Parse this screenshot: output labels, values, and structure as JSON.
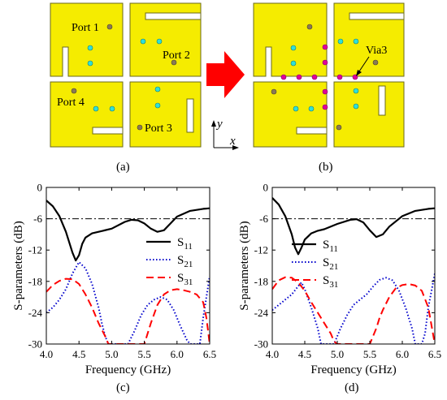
{
  "labels": {
    "port1": "Port 1",
    "port2": "Port 2",
    "port3": "Port 3",
    "port4": "Port 4",
    "via3": "Via3",
    "axis_y": "y",
    "axis_x": "x",
    "panel_a": "(a)",
    "panel_b": "(b)",
    "panel_c": "(c)",
    "panel_d": "(d)"
  },
  "colors": {
    "patch": "#f5ec00",
    "via": "#2fe0d8",
    "via3": "#e0009a",
    "arrow": "#ff0000",
    "s11": "#000000",
    "s21": "#0000cc",
    "s31": "#ff0000"
  },
  "chart_data": [
    {
      "type": "line",
      "panel": "(c)",
      "xlabel": "Frequency (GHz)",
      "ylabel": "S-parameters (dB)",
      "xlim": [
        4.0,
        6.5
      ],
      "ylim": [
        -30,
        0
      ],
      "xticks": [
        4.0,
        4.5,
        5.0,
        5.5,
        6.0,
        6.5
      ],
      "yticks": [
        0,
        -6,
        -12,
        -18,
        -24,
        -30
      ],
      "reference_line": -6,
      "legend_position": "right",
      "series": [
        {
          "name": "S11",
          "sub": "11",
          "style": "solid",
          "x": [
            4.0,
            4.1,
            4.2,
            4.3,
            4.4,
            4.45,
            4.5,
            4.55,
            4.6,
            4.7,
            4.8,
            5.0,
            5.2,
            5.3,
            5.4,
            5.5,
            5.6,
            5.7,
            5.8,
            5.9,
            6.0,
            6.2,
            6.4,
            6.5
          ],
          "y": [
            -2.5,
            -3.6,
            -5.5,
            -8.5,
            -12.5,
            -14.0,
            -13.0,
            -10.8,
            -9.6,
            -8.8,
            -8.5,
            -7.9,
            -6.6,
            -6.2,
            -6.3,
            -6.9,
            -7.9,
            -8.5,
            -8.2,
            -6.9,
            -5.6,
            -4.5,
            -4.1,
            -4.0
          ]
        },
        {
          "name": "S21",
          "sub": "21",
          "style": "dotted",
          "x": [
            4.0,
            4.1,
            4.2,
            4.3,
            4.4,
            4.5,
            4.6,
            4.7,
            4.8,
            4.85,
            4.9,
            4.95,
            5.25,
            5.35,
            5.45,
            5.55,
            5.65,
            5.75,
            5.85,
            5.95,
            6.05,
            6.15,
            6.2,
            6.35,
            6.4,
            6.5
          ],
          "y": [
            -24.0,
            -23.0,
            -21.5,
            -19.5,
            -16.5,
            -14.3,
            -15.5,
            -18.5,
            -23.0,
            -26.0,
            -28.5,
            -30.0,
            -30.0,
            -27.5,
            -24.5,
            -22.5,
            -21.5,
            -21.0,
            -21.5,
            -23.5,
            -26.5,
            -29.2,
            -30.0,
            -30.0,
            -25.0,
            -17.0
          ]
        },
        {
          "name": "S31",
          "sub": "31",
          "style": "dashed",
          "x": [
            4.0,
            4.1,
            4.2,
            4.3,
            4.4,
            4.5,
            4.6,
            4.7,
            4.8,
            4.9,
            4.95,
            5.5,
            5.6,
            5.7,
            5.8,
            5.9,
            6.0,
            6.1,
            6.2,
            6.3,
            6.4,
            6.45,
            6.5
          ],
          "y": [
            -20.0,
            -18.7,
            -17.9,
            -17.5,
            -17.6,
            -18.5,
            -20.5,
            -23.0,
            -26.0,
            -28.5,
            -30.0,
            -30.0,
            -26.0,
            -22.5,
            -20.5,
            -19.7,
            -19.5,
            -19.7,
            -20.0,
            -20.5,
            -22.0,
            -25.0,
            -30.0
          ]
        }
      ]
    },
    {
      "type": "line",
      "panel": "(d)",
      "xlabel": "Frequency (GHz)",
      "ylabel": "S-parameters (dB)",
      "xlim": [
        4.0,
        6.5
      ],
      "ylim": [
        -30,
        0
      ],
      "xticks": [
        4.0,
        4.5,
        5.0,
        5.5,
        6.0,
        6.5
      ],
      "yticks": [
        0,
        -6,
        -12,
        -18,
        -24,
        -30
      ],
      "reference_line": -6,
      "legend_position": "right",
      "series": [
        {
          "name": "S11",
          "sub": "11",
          "style": "solid",
          "x": [
            4.0,
            4.1,
            4.2,
            4.3,
            4.35,
            4.4,
            4.45,
            4.5,
            4.6,
            4.7,
            4.8,
            5.0,
            5.2,
            5.3,
            5.4,
            5.5,
            5.6,
            5.7,
            5.8,
            6.0,
            6.2,
            6.4,
            6.5
          ],
          "y": [
            -2.0,
            -3.3,
            -5.5,
            -9.0,
            -11.5,
            -12.8,
            -11.5,
            -10.0,
            -8.8,
            -8.3,
            -8.0,
            -7.0,
            -6.2,
            -6.1,
            -6.7,
            -8.2,
            -9.5,
            -9.0,
            -7.5,
            -5.5,
            -4.5,
            -4.1,
            -4.0
          ]
        },
        {
          "name": "S21",
          "sub": "21",
          "style": "dotted",
          "x": [
            4.0,
            4.1,
            4.2,
            4.3,
            4.4,
            4.45,
            4.5,
            4.6,
            4.7,
            4.75,
            4.8,
            4.95,
            5.05,
            5.15,
            5.25,
            5.35,
            5.45,
            5.55,
            5.65,
            5.75,
            5.85,
            5.95,
            6.05,
            6.15,
            6.2,
            6.3,
            6.35,
            6.4,
            6.5
          ],
          "y": [
            -23.5,
            -22.5,
            -21.5,
            -20.5,
            -18.9,
            -18.2,
            -19.5,
            -23.0,
            -27.0,
            -30.0,
            -30.0,
            -30.0,
            -27.0,
            -24.5,
            -22.5,
            -21.5,
            -20.5,
            -19.0,
            -17.7,
            -17.3,
            -17.8,
            -19.8,
            -23.0,
            -27.0,
            -30.0,
            -30.0,
            -28.0,
            -23.0,
            -16.5
          ]
        },
        {
          "name": "S31",
          "sub": "31",
          "style": "dashed",
          "x": [
            4.0,
            4.1,
            4.2,
            4.3,
            4.4,
            4.5,
            4.6,
            4.7,
            4.8,
            4.9,
            4.95,
            5.0,
            5.5,
            5.6,
            5.65,
            5.7,
            5.8,
            5.9,
            6.0,
            6.1,
            6.2,
            6.3,
            6.4,
            6.45,
            6.5
          ],
          "y": [
            -19.5,
            -17.8,
            -17.2,
            -17.3,
            -18.2,
            -19.8,
            -22.0,
            -24.0,
            -26.0,
            -28.0,
            -29.5,
            -30.0,
            -30.0,
            -27.0,
            -25.0,
            -23.5,
            -21.0,
            -19.3,
            -18.7,
            -18.5,
            -18.8,
            -19.8,
            -23.0,
            -26.5,
            -30.0
          ]
        }
      ]
    }
  ]
}
